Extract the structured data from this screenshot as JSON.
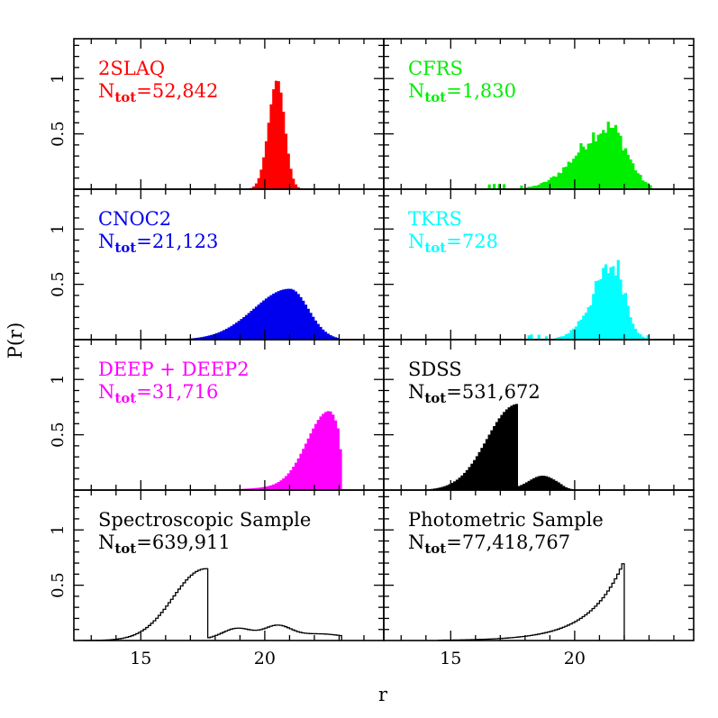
{
  "figure": {
    "ylabel": "P(r)",
    "xlabel": "r",
    "ytick_labels": [
      "1",
      "0.5"
    ],
    "xtick_labels": [
      "15",
      "20"
    ]
  },
  "chart_data": {
    "type": "histogram-grid",
    "layout": {
      "rows": 4,
      "cols": 2,
      "shared_x": true,
      "shared_y": true
    },
    "xlim": [
      12.3,
      24.8
    ],
    "ylim": [
      0,
      1.36
    ],
    "xticks_major": [
      15,
      20
    ],
    "xticks_minor_step": 1,
    "yticks_major": [
      0.5,
      1
    ],
    "yticks_minor_step": 0.1,
    "panels": [
      {
        "label": "2SLAQ",
        "n_label": "N",
        "n_sub": "tot",
        "n_value": "=52,842",
        "color": "#ff0000",
        "style": "filled",
        "model": {
          "kind": "peak",
          "peak": 0.99,
          "mu": 20.5,
          "sl": 0.35,
          "sr": 0.3,
          "x0": 18.2,
          "x1": 22.4,
          "bin": 0.1
        }
      },
      {
        "label": "CFRS",
        "n_label": "N",
        "n_sub": "tot",
        "n_value": "=1,830",
        "color": "#00ee00",
        "style": "filled",
        "model": {
          "kind": "noisy",
          "peak": 0.56,
          "mu": 21.4,
          "sl": 1.25,
          "sr": 0.7,
          "x0": 16.5,
          "x1": 23.1,
          "bin": 0.1,
          "noise": 0.3
        }
      },
      {
        "label": "CNOC2",
        "n_label": "N",
        "n_sub": "tot",
        "n_value": "=21,123",
        "color": "#0000ee",
        "style": "filled",
        "model": {
          "kind": "peak",
          "peak": 0.46,
          "mu": 21.0,
          "sl": 1.45,
          "sr": 0.75,
          "x0": 15.3,
          "x1": 23.0,
          "bin": 0.1
        }
      },
      {
        "label": "TKRS",
        "n_label": "N",
        "n_sub": "tot",
        "n_value": "=728",
        "color": "#00ffff",
        "style": "filled",
        "model": {
          "kind": "noisy",
          "peak": 0.67,
          "mu": 21.6,
          "sl": 0.85,
          "sr": 0.45,
          "x0": 17.2,
          "x1": 23.0,
          "bin": 0.1,
          "noise": 0.35
        }
      },
      {
        "label": "DEEP + DEEP2",
        "n_label": "N",
        "n_sub": "tot",
        "n_value": "=31,716",
        "color": "#ff00ff",
        "style": "filled",
        "model": {
          "kind": "deep",
          "peak": 0.71,
          "mu": 22.6,
          "sl": 0.9,
          "sr": 0.5,
          "x0": 17.0,
          "x1": 23.1,
          "bin": 0.1
        }
      },
      {
        "label": "SDSS",
        "n_label": "N",
        "n_sub": "tot",
        "n_value": "=531,672",
        "color": "#000000",
        "style": "filled",
        "model": {
          "kind": "sdss",
          "peak": 0.76,
          "mu": 17.6,
          "sl": 1.15,
          "cut": 17.7,
          "bumps": [
            [
              18.7,
              0.12,
              0.55
            ]
          ],
          "x0": 12.8,
          "x1": 20.2,
          "bin": 0.1
        }
      },
      {
        "label": "Spectroscopic Sample",
        "n_label": "N",
        "n_sub": "tot",
        "n_value": "=639,911",
        "color": "#000000",
        "style": "step",
        "model": {
          "kind": "spec",
          "peak": 0.64,
          "mu": 17.55,
          "sl": 1.25,
          "cut": 17.7,
          "bumps": [
            [
              18.9,
              0.1,
              0.6
            ],
            [
              20.5,
              0.115,
              0.55
            ],
            [
              22.2,
              0.05,
              1.0
            ]
          ],
          "x0": 12.5,
          "x1": 23.1,
          "bin": 0.1
        }
      },
      {
        "label": "Photometric Sample",
        "n_label": "N",
        "n_sub": "tot",
        "n_value": "=77,418,767",
        "color": "#000000",
        "style": "step",
        "model": {
          "kind": "phot",
          "peak": 0.72,
          "end": 22.0,
          "x0": 14.5,
          "bin": 0.1
        }
      }
    ]
  }
}
